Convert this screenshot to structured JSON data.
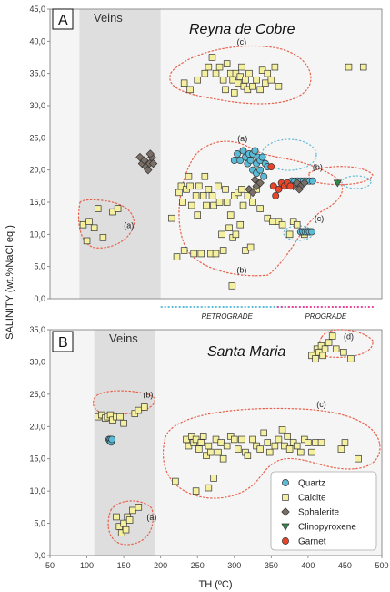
{
  "chart_data": [
    {
      "type": "scatter",
      "panel_label": "A",
      "title": "Reyna de Cobre",
      "region_label": "Veins",
      "ylim": [
        0,
        45
      ],
      "yticks": [
        "0,0",
        "5,0",
        "10,0",
        "15,0",
        "20,0",
        "25,0",
        "30,0",
        "35,0",
        "40,0",
        "45,0"
      ],
      "xlim": [
        50,
        500
      ],
      "veins_band": [
        90,
        200
      ],
      "series": [
        {
          "name": "Calcite",
          "points": [
            [
              95,
              11.5
            ],
            [
              100,
              9
            ],
            [
              103,
              12
            ],
            [
              110,
              11
            ],
            [
              115,
              14
            ],
            [
              122,
              9.5
            ],
            [
              135,
              13.5
            ],
            [
              142,
              14
            ],
            [
              215,
              12.5
            ],
            [
              222,
              6.5
            ],
            [
              225,
              16.5
            ],
            [
              228,
              17.5
            ],
            [
              230,
              15
            ],
            [
              232,
              7.5
            ],
            [
              235,
              17
            ],
            [
              238,
              19
            ],
            [
              240,
              17.5
            ],
            [
              242,
              14.5
            ],
            [
              245,
              7
            ],
            [
              248,
              16
            ],
            [
              250,
              13
            ],
            [
              252,
              17.5
            ],
            [
              255,
              7
            ],
            [
              258,
              16
            ],
            [
              260,
              19
            ],
            [
              262,
              14.5
            ],
            [
              265,
              17
            ],
            [
              268,
              7
            ],
            [
              270,
              16
            ],
            [
              272,
              14.5
            ],
            [
              275,
              7
            ],
            [
              278,
              17.5
            ],
            [
              280,
              15
            ],
            [
              283,
              10
            ],
            [
              285,
              7.5
            ],
            [
              288,
              17
            ],
            [
              290,
              15
            ],
            [
              293,
              11
            ],
            [
              295,
              13
            ],
            [
              297,
              2
            ],
            [
              298,
              9.5
            ],
            [
              300,
              16
            ],
            [
              302,
              10
            ],
            [
              305,
              16.5
            ],
            [
              308,
              11.5
            ],
            [
              310,
              17
            ],
            [
              312,
              14.5
            ],
            [
              315,
              7.5
            ],
            [
              318,
              16
            ],
            [
              322,
              8
            ],
            [
              325,
              15
            ],
            [
              330,
              17
            ],
            [
              335,
              14
            ],
            [
              345,
              12.5
            ],
            [
              352,
              12
            ],
            [
              360,
              12
            ],
            [
              365,
              11.5
            ],
            [
              375,
              10
            ],
            [
              380,
              12
            ],
            [
              385,
              11.5
            ],
            [
              395,
              10
            ],
            [
              232,
              33.5
            ],
            [
              240,
              32.5
            ],
            [
              250,
              34
            ],
            [
              260,
              35
            ],
            [
              265,
              36
            ],
            [
              270,
              37.5
            ],
            [
              275,
              35
            ],
            [
              280,
              36
            ],
            [
              285,
              34
            ],
            [
              288,
              32.5
            ],
            [
              290,
              36.5
            ],
            [
              295,
              35
            ],
            [
              298,
              34
            ],
            [
              300,
              32
            ],
            [
              302,
              35
            ],
            [
              305,
              33.5
            ],
            [
              308,
              34.5
            ],
            [
              310,
              36
            ],
            [
              313,
              33
            ],
            [
              315,
              34
            ],
            [
              318,
              32.5
            ],
            [
              320,
              35
            ],
            [
              325,
              33
            ],
            [
              330,
              34
            ],
            [
              335,
              32.5
            ],
            [
              338,
              35.5
            ],
            [
              342,
              33.5
            ],
            [
              345,
              35
            ],
            [
              350,
              34
            ],
            [
              355,
              36
            ],
            [
              360,
              33
            ],
            [
              455,
              36
            ],
            [
              475,
              36
            ]
          ]
        },
        {
          "name": "Quartz",
          "points": [
            [
              300,
              21.5
            ],
            [
              304,
              22.5
            ],
            [
              308,
              21.5
            ],
            [
              312,
              23
            ],
            [
              315,
              22
            ],
            [
              318,
              21
            ],
            [
              320,
              22.5
            ],
            [
              322,
              21.5
            ],
            [
              325,
              22.5
            ],
            [
              328,
              23
            ],
            [
              330,
              21
            ],
            [
              332,
              22
            ],
            [
              335,
              21.5
            ],
            [
              338,
              22
            ],
            [
              342,
              21
            ],
            [
              345,
              20.5
            ],
            [
              325,
              20
            ],
            [
              330,
              19.5
            ],
            [
              335,
              20
            ],
            [
              340,
              19
            ],
            [
              378,
              18.3
            ],
            [
              382,
              18.3
            ],
            [
              386,
              18.3
            ],
            [
              390,
              18.3
            ],
            [
              394,
              18.3
            ],
            [
              398,
              18.3
            ],
            [
              402,
              18.3
            ],
            [
              406,
              18.3
            ],
            [
              390,
              10.4
            ],
            [
              393,
              10.4
            ],
            [
              396,
              10.4
            ],
            [
              399,
              10.4
            ],
            [
              402,
              10.4
            ],
            [
              405,
              10.4
            ]
          ]
        },
        {
          "name": "Sphalerite",
          "points": [
            [
              172,
              22
            ],
            [
              175,
              21
            ],
            [
              178,
              21.5
            ],
            [
              180,
              20.5
            ],
            [
              183,
              20
            ],
            [
              185,
              21
            ],
            [
              188,
              22
            ],
            [
              190,
              21
            ],
            [
              186,
              22.5
            ],
            [
              320,
              17
            ],
            [
              325,
              16.5
            ],
            [
              330,
              17.5
            ],
            [
              335,
              18
            ],
            [
              328,
              18.5
            ],
            [
              380,
              17.5
            ],
            [
              385,
              18
            ],
            [
              390,
              17.5
            ],
            [
              395,
              18
            ],
            [
              388,
              17
            ]
          ]
        },
        {
          "name": "Clinopyroxene",
          "points": [
            [
              440,
              18
            ]
          ]
        },
        {
          "name": "Garnet",
          "points": [
            [
              350,
              20.5
            ],
            [
              353,
              17.5
            ],
            [
              356,
              16
            ],
            [
              360,
              17
            ],
            [
              364,
              18
            ],
            [
              368,
              17.5
            ],
            [
              372,
              18
            ],
            [
              376,
              17.5
            ]
          ]
        }
      ],
      "groups": [
        {
          "label": "(a)",
          "lx": 157,
          "ly": 11
        },
        {
          "label": "(b)",
          "lx": 310,
          "ly": 4
        },
        {
          "label": "(c)",
          "lx": 310,
          "ly": 39.5
        },
        {
          "label": "(a)",
          "lx": 311,
          "ly": 24.5
        },
        {
          "label": "(b)",
          "lx": 413,
          "ly": 20
        },
        {
          "label": "(c)",
          "lx": 415,
          "ly": 12
        }
      ],
      "stages": [
        {
          "label": "RETROGRADE",
          "from": 200,
          "to": 380,
          "color": "#5bc0de"
        },
        {
          "label": "PROGRADE",
          "from": 358,
          "to": 490,
          "color": "#e8479c"
        }
      ]
    },
    {
      "type": "scatter",
      "panel_label": "B",
      "title": "Santa Maria",
      "region_label": "Veins",
      "xlabel": "TH (ºC)",
      "ylim": [
        0,
        35
      ],
      "yticks": [
        "0,0",
        "5,0",
        "10,0",
        "15,0",
        "20,0",
        "25,0",
        "30,0",
        "35,0"
      ],
      "xlim": [
        50,
        500
      ],
      "xticks": [
        50,
        100,
        150,
        200,
        250,
        300,
        350,
        400,
        450,
        500
      ],
      "veins_band": [
        110,
        192
      ],
      "series": [
        {
          "name": "Calcite",
          "points": [
            [
              115,
              21.5
            ],
            [
              120,
              21.8
            ],
            [
              125,
              21.3
            ],
            [
              128,
              21.5
            ],
            [
              132,
              21.8
            ],
            [
              135,
              21
            ],
            [
              140,
              21.5
            ],
            [
              145,
              21.5
            ],
            [
              150,
              20.5
            ],
            [
              165,
              22
            ],
            [
              170,
              22.5
            ],
            [
              178,
              23
            ],
            [
              140,
              6
            ],
            [
              144,
              4.5
            ],
            [
              147,
              3.5
            ],
            [
              150,
              5
            ],
            [
              153,
              4
            ],
            [
              155,
              6
            ],
            [
              158,
              5.5
            ],
            [
              162,
              7
            ],
            [
              170,
              7.5
            ],
            [
              220,
              11.5
            ],
            [
              235,
              18
            ],
            [
              238,
              17
            ],
            [
              242,
              18.5
            ],
            [
              245,
              17.5
            ],
            [
              248,
              18
            ],
            [
              252,
              16.5
            ],
            [
              255,
              17.5
            ],
            [
              258,
              18.5
            ],
            [
              262,
              15.5
            ],
            [
              265,
              17
            ],
            [
              268,
              16
            ],
            [
              272,
              12
            ],
            [
              275,
              18
            ],
            [
              278,
              16
            ],
            [
              282,
              17.5
            ],
            [
              285,
              15
            ],
            [
              290,
              17
            ],
            [
              295,
              18.5
            ],
            [
              300,
              18
            ],
            [
              305,
              16.5
            ],
            [
              310,
              18
            ],
            [
              315,
              16
            ],
            [
              318,
              15.5
            ],
            [
              325,
              18
            ],
            [
              330,
              17
            ],
            [
              335,
              16.5
            ],
            [
              340,
              19
            ],
            [
              345,
              17.5
            ],
            [
              348,
              16
            ],
            [
              355,
              17
            ],
            [
              360,
              18
            ],
            [
              365,
              19.5
            ],
            [
              368,
              17
            ],
            [
              372,
              18.5
            ],
            [
              375,
              16.5
            ],
            [
              380,
              17.5
            ],
            [
              385,
              17
            ],
            [
              390,
              16
            ],
            [
              395,
              18
            ],
            [
              400,
              17.5
            ],
            [
              405,
              16
            ],
            [
              410,
              17.5
            ],
            [
              418,
              17.5
            ],
            [
              445,
              16.5
            ],
            [
              450,
              17.5
            ],
            [
              468,
              15
            ],
            [
              248,
              10
            ],
            [
              265,
              10.5
            ],
            [
              405,
              31
            ],
            [
              410,
              30.5
            ],
            [
              412,
              32
            ],
            [
              415,
              31.5
            ],
            [
              418,
              32.5
            ],
            [
              420,
              31
            ],
            [
              423,
              32
            ],
            [
              428,
              33
            ],
            [
              433,
              34
            ],
            [
              438,
              32
            ],
            [
              448,
              31.5
            ],
            [
              458,
              30.5
            ]
          ]
        },
        {
          "name": "Quartz",
          "points": [
            [
              130,
              18
            ],
            [
              131,
              17.8
            ],
            [
              132,
              18
            ],
            [
              133,
              17.6
            ],
            [
              134,
              18
            ]
          ]
        }
      ],
      "groups": [
        {
          "label": "(b)",
          "lx": 183,
          "ly": 24.5
        },
        {
          "label": "(a)",
          "lx": 188,
          "ly": 5.5
        },
        {
          "label": "(c)",
          "lx": 418,
          "ly": 23
        },
        {
          "label": "(d)",
          "lx": 455,
          "ly": 33.5
        }
      ]
    }
  ],
  "y_axis_label": "SALINITY (wt.%NaCl eq.)",
  "legend": [
    {
      "name": "Quartz",
      "shape": "circle",
      "color": "#5bbad5"
    },
    {
      "name": "Calcite",
      "shape": "square",
      "color": "#f4f0a0"
    },
    {
      "name": "Sphalerite",
      "shape": "diamond",
      "color": "#7a6e66"
    },
    {
      "name": "Clinopyroxene",
      "shape": "triangle",
      "color": "#2e8a4a"
    },
    {
      "name": "Garnet",
      "shape": "circle",
      "color": "#e8452a"
    }
  ],
  "colors": {
    "plot_bg": "#f5f5f5",
    "veins_band": "#dedede",
    "envelope": "#e8604a",
    "envelope_quartz": "#5bbad5"
  }
}
